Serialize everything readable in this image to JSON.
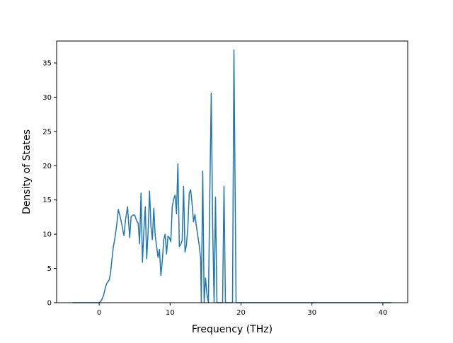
{
  "chart_data": {
    "type": "line",
    "xlabel": "Frequency (THz)",
    "ylabel": "Density of States",
    "xlim": [
      -6,
      43.5
    ],
    "ylim": [
      0,
      38.2
    ],
    "xticks": [
      0,
      10,
      20,
      30,
      40
    ],
    "yticks": [
      0,
      5,
      10,
      15,
      20,
      25,
      30,
      35
    ],
    "xtick_labels": [
      "0",
      "10",
      "20",
      "30",
      "40"
    ],
    "ytick_labels": [
      "0",
      "5",
      "10",
      "15",
      "20",
      "25",
      "30",
      "35"
    ],
    "grid": false,
    "legend": "none",
    "series": [
      {
        "color": "#1f77b4",
        "points": [
          [
            -3.8,
            0
          ],
          [
            -1.0,
            0
          ],
          [
            0.0,
            0
          ],
          [
            0.3,
            0.3
          ],
          [
            0.6,
            1.0
          ],
          [
            0.9,
            2.3
          ],
          [
            1.1,
            2.9
          ],
          [
            1.4,
            3.3
          ],
          [
            1.6,
            4.3
          ],
          [
            1.8,
            6.3
          ],
          [
            2.0,
            8.2
          ],
          [
            2.2,
            9.3
          ],
          [
            2.5,
            11.6
          ],
          [
            2.7,
            13.6
          ],
          [
            3.0,
            12.4
          ],
          [
            3.3,
            10.8
          ],
          [
            3.5,
            9.8
          ],
          [
            3.7,
            12.0
          ],
          [
            4.0,
            14.0
          ],
          [
            4.3,
            9.5
          ],
          [
            4.5,
            12.6
          ],
          [
            4.8,
            12.8
          ],
          [
            5.0,
            12.8
          ],
          [
            5.3,
            11.9
          ],
          [
            5.5,
            11.6
          ],
          [
            5.7,
            8.6
          ],
          [
            5.9,
            16.0
          ],
          [
            6.1,
            5.9
          ],
          [
            6.3,
            10.5
          ],
          [
            6.5,
            14.0
          ],
          [
            6.7,
            6.4
          ],
          [
            6.9,
            10.4
          ],
          [
            7.1,
            16.3
          ],
          [
            7.3,
            11.2
          ],
          [
            7.5,
            9.2
          ],
          [
            7.7,
            13.8
          ],
          [
            7.9,
            9.8
          ],
          [
            8.1,
            8.2
          ],
          [
            8.3,
            6.6
          ],
          [
            8.5,
            7.8
          ],
          [
            8.7,
            4.0
          ],
          [
            8.9,
            6.1
          ],
          [
            9.1,
            9.2
          ],
          [
            9.3,
            10.0
          ],
          [
            9.5,
            7.1
          ],
          [
            9.7,
            9.7
          ],
          [
            9.9,
            9.5
          ],
          [
            10.1,
            8.9
          ],
          [
            10.3,
            14.0
          ],
          [
            10.5,
            15.1
          ],
          [
            10.7,
            15.7
          ],
          [
            10.9,
            13.0
          ],
          [
            11.1,
            20.3
          ],
          [
            11.3,
            8.2
          ],
          [
            11.5,
            8.5
          ],
          [
            11.7,
            9.1
          ],
          [
            11.9,
            17.0
          ],
          [
            12.1,
            7.4
          ],
          [
            12.3,
            8.4
          ],
          [
            12.5,
            11.0
          ],
          [
            12.7,
            16.0
          ],
          [
            12.9,
            16.5
          ],
          [
            13.1,
            14.4
          ],
          [
            13.3,
            11.8
          ],
          [
            13.5,
            12.9
          ],
          [
            13.7,
            11.2
          ],
          [
            13.9,
            9.8
          ],
          [
            14.1,
            8.4
          ],
          [
            14.3,
            6.5
          ],
          [
            14.4,
            0
          ],
          [
            14.6,
            19.2
          ],
          [
            14.8,
            0
          ],
          [
            15.0,
            3.6
          ],
          [
            15.2,
            1.2
          ],
          [
            15.4,
            0
          ],
          [
            15.6,
            16.0
          ],
          [
            15.8,
            30.6
          ],
          [
            16.0,
            11.2
          ],
          [
            16.2,
            0
          ],
          [
            16.4,
            15.4
          ],
          [
            16.6,
            0
          ],
          [
            17.2,
            0
          ],
          [
            17.4,
            0
          ],
          [
            17.6,
            17.0
          ],
          [
            17.8,
            0
          ],
          [
            18.6,
            0
          ],
          [
            18.8,
            0
          ],
          [
            19.0,
            36.9
          ],
          [
            19.3,
            0
          ],
          [
            24.0,
            0
          ],
          [
            41.2,
            0
          ]
        ]
      }
    ]
  }
}
